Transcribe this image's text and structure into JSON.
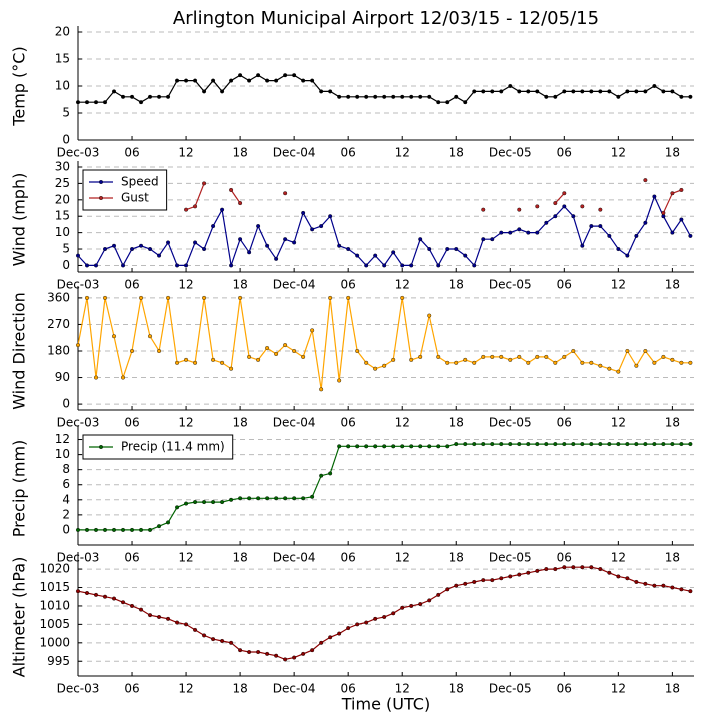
{
  "chart_data": [
    {
      "type": "line",
      "title": "Arlington Municipal Airport 12/03/15 - 12/05/15",
      "ylabel": "Temp (°C)",
      "xlim": [
        0,
        68.4
      ],
      "xticks": [
        {
          "value": 0,
          "label": "Dec-03"
        },
        {
          "value": 6,
          "label": "06"
        },
        {
          "value": 12,
          "label": "12"
        },
        {
          "value": 18,
          "label": "18"
        },
        {
          "value": 24,
          "label": "Dec-04"
        },
        {
          "value": 30,
          "label": "06"
        },
        {
          "value": 36,
          "label": "12"
        },
        {
          "value": 42,
          "label": "18"
        },
        {
          "value": 48,
          "label": "Dec-05"
        },
        {
          "value": 54,
          "label": "06"
        },
        {
          "value": 60,
          "label": "12"
        },
        {
          "value": 66,
          "label": "18"
        }
      ],
      "ylim": [
        0,
        20
      ],
      "yticks": [
        0,
        5,
        10,
        15,
        20
      ],
      "grid": true,
      "x": [
        0,
        1,
        2,
        3,
        4,
        5,
        6,
        7,
        8,
        9,
        10,
        11,
        12,
        13,
        14,
        15,
        16,
        17,
        18,
        19,
        20,
        21,
        22,
        23,
        24,
        25,
        26,
        27,
        28,
        29,
        30,
        31,
        32,
        33,
        34,
        35,
        36,
        37,
        38,
        39,
        40,
        41,
        42,
        43,
        44,
        45,
        46,
        47,
        48,
        49,
        50,
        51,
        52,
        53,
        54,
        55,
        56,
        57,
        58,
        59,
        60,
        61,
        62,
        63,
        64,
        65,
        66,
        67,
        68
      ],
      "series": [
        {
          "color": "#000000",
          "values": [
            7,
            7,
            7,
            7,
            9,
            8,
            8,
            7,
            8,
            8,
            8,
            11,
            11,
            11,
            9,
            11,
            9,
            11,
            12,
            11,
            12,
            11,
            11,
            12,
            12,
            11,
            11,
            9,
            9,
            8,
            8,
            8,
            8,
            8,
            8,
            8,
            8,
            8,
            8,
            8,
            7,
            7,
            8,
            7,
            9,
            9,
            9,
            9,
            10,
            9,
            9,
            9,
            8,
            8,
            9,
            9,
            9,
            9,
            9,
            9,
            8,
            9,
            9,
            9,
            10,
            9,
            9,
            8,
            8
          ]
        }
      ]
    },
    {
      "type": "line",
      "ylabel": "Wind (mph)",
      "legend": "upper left",
      "xlim": [
        0,
        68.4
      ],
      "xticks": [
        {
          "value": 0,
          "label": "Dec-03"
        },
        {
          "value": 6,
          "label": "06"
        },
        {
          "value": 12,
          "label": "12"
        },
        {
          "value": 18,
          "label": "18"
        },
        {
          "value": 24,
          "label": "Dec-04"
        },
        {
          "value": 30,
          "label": "06"
        },
        {
          "value": 36,
          "label": "12"
        },
        {
          "value": 42,
          "label": "18"
        },
        {
          "value": 48,
          "label": "Dec-05"
        },
        {
          "value": 54,
          "label": "06"
        },
        {
          "value": 60,
          "label": "12"
        },
        {
          "value": 66,
          "label": "18"
        }
      ],
      "ylim": [
        -2,
        30
      ],
      "yticks": [
        0,
        5,
        10,
        15,
        20,
        25,
        30
      ],
      "grid": true,
      "x": [
        0,
        1,
        2,
        3,
        4,
        5,
        6,
        7,
        8,
        9,
        10,
        11,
        12,
        13,
        14,
        15,
        16,
        17,
        18,
        19,
        20,
        21,
        22,
        23,
        24,
        25,
        26,
        27,
        28,
        29,
        30,
        31,
        32,
        33,
        34,
        35,
        36,
        37,
        38,
        39,
        40,
        41,
        42,
        43,
        44,
        45,
        46,
        47,
        48,
        49,
        50,
        51,
        52,
        53,
        54,
        55,
        56,
        57,
        58,
        59,
        60,
        61,
        62,
        63,
        64,
        65,
        66,
        67,
        68
      ],
      "series": [
        {
          "name": "Speed",
          "color": "#00008b",
          "values": [
            3,
            0,
            0,
            5,
            6,
            0,
            5,
            6,
            5,
            3,
            7,
            0,
            0,
            7,
            5,
            12,
            17,
            0,
            8,
            4,
            12,
            6,
            2,
            8,
            7,
            16,
            11,
            12,
            15,
            6,
            5,
            3,
            0,
            3,
            0,
            4,
            0,
            0,
            8,
            5,
            0,
            5,
            5,
            3,
            0,
            8,
            8,
            10,
            10,
            11,
            10,
            10,
            13,
            15,
            18,
            15,
            6,
            12,
            12,
            9,
            5,
            3,
            9,
            13,
            21,
            15,
            10,
            14,
            9
          ]
        },
        {
          "name": "Gust",
          "color": "#b22222",
          "values": [
            null,
            null,
            null,
            null,
            null,
            null,
            null,
            null,
            null,
            null,
            null,
            null,
            17,
            18,
            25,
            null,
            null,
            23,
            19,
            null,
            null,
            null,
            null,
            22,
            null,
            null,
            null,
            null,
            null,
            null,
            null,
            null,
            null,
            null,
            null,
            null,
            null,
            null,
            null,
            null,
            null,
            null,
            null,
            null,
            null,
            17,
            null,
            null,
            null,
            17,
            null,
            18,
            null,
            19,
            22,
            null,
            18,
            null,
            17,
            null,
            null,
            null,
            null,
            26,
            null,
            16,
            22,
            23,
            null
          ]
        }
      ]
    },
    {
      "type": "line",
      "ylabel": "Wind Direction",
      "xlim": [
        0,
        68.4
      ],
      "xticks": [
        {
          "value": 0,
          "label": "Dec-03"
        },
        {
          "value": 6,
          "label": "06"
        },
        {
          "value": 12,
          "label": "12"
        },
        {
          "value": 18,
          "label": "18"
        },
        {
          "value": 24,
          "label": "Dec-04"
        },
        {
          "value": 30,
          "label": "06"
        },
        {
          "value": 36,
          "label": "12"
        },
        {
          "value": 42,
          "label": "18"
        },
        {
          "value": 48,
          "label": "Dec-05"
        },
        {
          "value": 54,
          "label": "06"
        },
        {
          "value": 60,
          "label": "12"
        },
        {
          "value": 66,
          "label": "18"
        }
      ],
      "ylim": [
        -20,
        380
      ],
      "yticks": [
        0,
        90,
        180,
        270,
        360
      ],
      "grid": true,
      "x": [
        0,
        1,
        2,
        3,
        4,
        5,
        6,
        7,
        8,
        9,
        10,
        11,
        12,
        13,
        14,
        15,
        16,
        17,
        18,
        19,
        20,
        21,
        22,
        23,
        24,
        25,
        26,
        27,
        28,
        29,
        30,
        31,
        32,
        33,
        34,
        35,
        36,
        37,
        38,
        39,
        40,
        41,
        42,
        43,
        44,
        45,
        46,
        47,
        48,
        49,
        50,
        51,
        52,
        53,
        54,
        55,
        56,
        57,
        58,
        59,
        60,
        61,
        62,
        63,
        64,
        65,
        66,
        67,
        68
      ],
      "series": [
        {
          "color": "#ffa500",
          "values": [
            200,
            360,
            90,
            360,
            230,
            90,
            180,
            360,
            230,
            180,
            360,
            140,
            150,
            140,
            360,
            150,
            140,
            120,
            360,
            160,
            150,
            190,
            170,
            200,
            180,
            160,
            250,
            50,
            360,
            80,
            360,
            180,
            140,
            120,
            130,
            150,
            360,
            150,
            160,
            300,
            160,
            140,
            140,
            150,
            140,
            160,
            160,
            160,
            150,
            160,
            140,
            160,
            160,
            140,
            160,
            180,
            140,
            140,
            130,
            120,
            110,
            180,
            130,
            180,
            140,
            160,
            150,
            140,
            140
          ]
        }
      ]
    },
    {
      "type": "line",
      "ylabel": "Precip (mm)",
      "legend": "upper left",
      "xlim": [
        0,
        68.4
      ],
      "xticks": [
        {
          "value": 0,
          "label": "Dec-03"
        },
        {
          "value": 6,
          "label": "06"
        },
        {
          "value": 12,
          "label": "12"
        },
        {
          "value": 18,
          "label": "18"
        },
        {
          "value": 24,
          "label": "Dec-04"
        },
        {
          "value": 30,
          "label": "06"
        },
        {
          "value": 36,
          "label": "12"
        },
        {
          "value": 42,
          "label": "18"
        },
        {
          "value": 48,
          "label": "Dec-05"
        },
        {
          "value": 54,
          "label": "06"
        },
        {
          "value": 60,
          "label": "12"
        },
        {
          "value": 66,
          "label": "18"
        }
      ],
      "ylim": [
        -2,
        13
      ],
      "yticks": [
        0,
        2,
        4,
        6,
        8,
        10,
        12
      ],
      "grid": true,
      "x": [
        0,
        1,
        2,
        3,
        4,
        5,
        6,
        7,
        8,
        9,
        10,
        11,
        12,
        13,
        14,
        15,
        16,
        17,
        18,
        19,
        20,
        21,
        22,
        23,
        24,
        25,
        26,
        27,
        28,
        29,
        30,
        31,
        32,
        33,
        34,
        35,
        36,
        37,
        38,
        39,
        40,
        41,
        42,
        43,
        44,
        45,
        46,
        47,
        48,
        49,
        50,
        51,
        52,
        53,
        54,
        55,
        56,
        57,
        58,
        59,
        60,
        61,
        62,
        63,
        64,
        65,
        66,
        67,
        68
      ],
      "series": [
        {
          "name": "Precip (11.4 mm)",
          "color": "#006400",
          "values": [
            0,
            0,
            0,
            0,
            0,
            0,
            0,
            0,
            0,
            0.5,
            1,
            3,
            3.5,
            3.7,
            3.7,
            3.7,
            3.7,
            4,
            4.2,
            4.2,
            4.2,
            4.2,
            4.2,
            4.2,
            4.2,
            4.2,
            4.4,
            7.2,
            7.5,
            11.1,
            11.1,
            11.1,
            11.1,
            11.1,
            11.1,
            11.1,
            11.1,
            11.1,
            11.1,
            11.1,
            11.1,
            11.1,
            11.4,
            11.4,
            11.4,
            11.4,
            11.4,
            11.4,
            11.4,
            11.4,
            11.4,
            11.4,
            11.4,
            11.4,
            11.4,
            11.4,
            11.4,
            11.4,
            11.4,
            11.4,
            11.4,
            11.4,
            11.4,
            11.4,
            11.4,
            11.4,
            11.4,
            11.4,
            11.4
          ]
        }
      ]
    },
    {
      "type": "line",
      "ylabel": "Altimeter (hPa)",
      "xlabel": "Time (UTC)",
      "xlim": [
        0,
        68.4
      ],
      "xticks": [
        {
          "value": 0,
          "label": "Dec-03"
        },
        {
          "value": 6,
          "label": "06"
        },
        {
          "value": 12,
          "label": "12"
        },
        {
          "value": 18,
          "label": "18"
        },
        {
          "value": 24,
          "label": "Dec-04"
        },
        {
          "value": 30,
          "label": "06"
        },
        {
          "value": 36,
          "label": "12"
        },
        {
          "value": 42,
          "label": "18"
        },
        {
          "value": 48,
          "label": "Dec-05"
        },
        {
          "value": 54,
          "label": "06"
        },
        {
          "value": 60,
          "label": "12"
        },
        {
          "value": 66,
          "label": "18"
        }
      ],
      "ylim": [
        991,
        1023
      ],
      "yticks": [
        995,
        1000,
        1005,
        1010,
        1015,
        1020
      ],
      "grid": true,
      "x": [
        0,
        1,
        2,
        3,
        4,
        5,
        6,
        7,
        8,
        9,
        10,
        11,
        12,
        13,
        14,
        15,
        16,
        17,
        18,
        19,
        20,
        21,
        22,
        23,
        24,
        25,
        26,
        27,
        28,
        29,
        30,
        31,
        32,
        33,
        34,
        35,
        36,
        37,
        38,
        39,
        40,
        41,
        42,
        43,
        44,
        45,
        46,
        47,
        48,
        49,
        50,
        51,
        52,
        53,
        54,
        55,
        56,
        57,
        58,
        59,
        60,
        61,
        62,
        63,
        64,
        65,
        66,
        67,
        68
      ],
      "series": [
        {
          "color": "#8b0000",
          "values": [
            1014,
            1013.5,
            1013,
            1012.5,
            1012,
            1011,
            1010,
            1009,
            1007.5,
            1007,
            1006.5,
            1005.5,
            1005,
            1003.5,
            1002,
            1001,
            1000.5,
            1000,
            998,
            997.5,
            997.5,
            997,
            996.5,
            995.5,
            996,
            997,
            998,
            1000,
            1001.5,
            1002.5,
            1004,
            1005,
            1005.5,
            1006.5,
            1007,
            1008,
            1009.5,
            1010,
            1010.5,
            1011.5,
            1013,
            1014.5,
            1015.5,
            1016,
            1016.5,
            1017,
            1017,
            1017.5,
            1018,
            1018.5,
            1019,
            1019.5,
            1020,
            1020,
            1020.5,
            1020.5,
            1020.5,
            1020.5,
            1020,
            1019,
            1018,
            1017.5,
            1016.5,
            1016,
            1015.5,
            1015.5,
            1015,
            1014.5,
            1014
          ]
        }
      ]
    }
  ]
}
